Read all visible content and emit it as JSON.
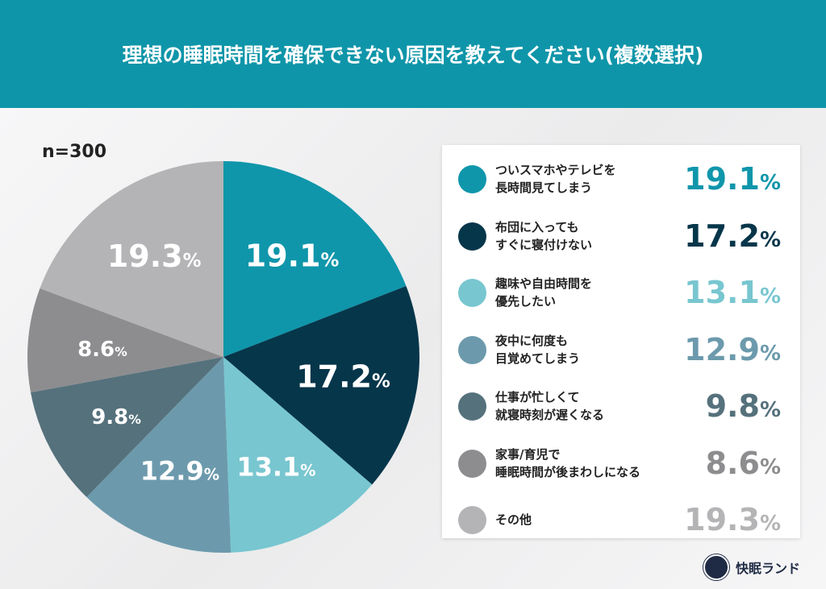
{
  "title": "理想の睡眠時間を確保できない原因を教えてください(複数選択)",
  "sample": "n=300",
  "brand": "快眠ランド",
  "chart_data": {
    "type": "pie",
    "title": "理想の睡眠時間を確保できない原因を教えてください(複数選択)",
    "unit": "%",
    "categories": [
      "ついスマホやテレビを\n長時間見てしまう",
      "布団に入っても\nすぐに寝付けない",
      "趣味や自由時間を\n優先したい",
      "夜中に何度も\n目覚めてしまう",
      "仕事が忙しくて\n就寝時刻が遅くなる",
      "家事/育児で\n睡眠時間が後まわしになる",
      "その他"
    ],
    "values": [
      19.1,
      17.2,
      13.1,
      12.9,
      9.8,
      8.6,
      19.3
    ],
    "labels": [
      "19.1",
      "17.2",
      "13.1",
      "12.9",
      "9.8",
      "8.6",
      "19.3"
    ],
    "colors": [
      "#0f96ab",
      "#06364a",
      "#78c6d0",
      "#6c9aac",
      "#55717c",
      "#8d8d8f",
      "#b4b4b6"
    ],
    "start": "12 o'clock",
    "direction": "clockwise",
    "legend": "right"
  }
}
